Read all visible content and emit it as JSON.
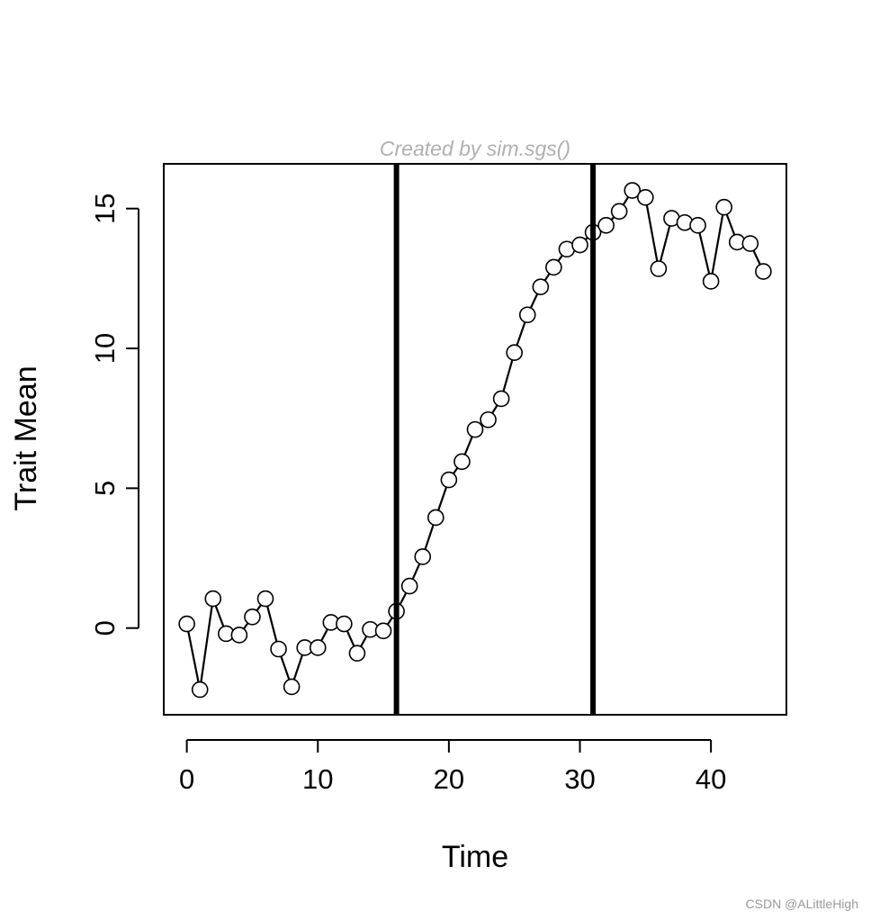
{
  "chart_data": {
    "type": "line",
    "subtitle": "Created by sim.sgs()",
    "xlabel": "Time",
    "ylabel": "Trait Mean",
    "xlim": [
      -1.76,
      45.76
    ],
    "ylim": [
      -3.1,
      16.6
    ],
    "xticks": [
      0,
      10,
      20,
      30,
      40
    ],
    "yticks": [
      0,
      5,
      10,
      15
    ],
    "vlines": [
      16,
      31
    ],
    "series": [
      {
        "name": "trait mean",
        "x": [
          0,
          1,
          2,
          3,
          4,
          5,
          6,
          7,
          8,
          9,
          10,
          11,
          12,
          13,
          14,
          15,
          16,
          17,
          18,
          19,
          20,
          21,
          22,
          23,
          24,
          25,
          26,
          27,
          28,
          29,
          30,
          31,
          32,
          33,
          34,
          35,
          36,
          37,
          38,
          39,
          40,
          41,
          42,
          43,
          44
        ],
        "y": [
          0.15,
          -2.2,
          1.05,
          -0.2,
          -0.25,
          0.4,
          1.05,
          -0.75,
          -2.1,
          -0.7,
          -0.7,
          0.2,
          0.15,
          -0.9,
          -0.05,
          -0.1,
          0.6,
          1.5,
          2.55,
          3.95,
          5.3,
          5.95,
          7.1,
          7.45,
          8.2,
          9.85,
          11.2,
          12.2,
          12.9,
          13.55,
          13.7,
          14.15,
          14.4,
          14.9,
          15.65,
          15.4,
          12.85,
          14.65,
          14.5,
          14.4,
          12.4,
          15.05,
          13.8,
          13.75,
          12.75
        ]
      }
    ]
  },
  "watermark": "CSDN @ALittleHigh"
}
